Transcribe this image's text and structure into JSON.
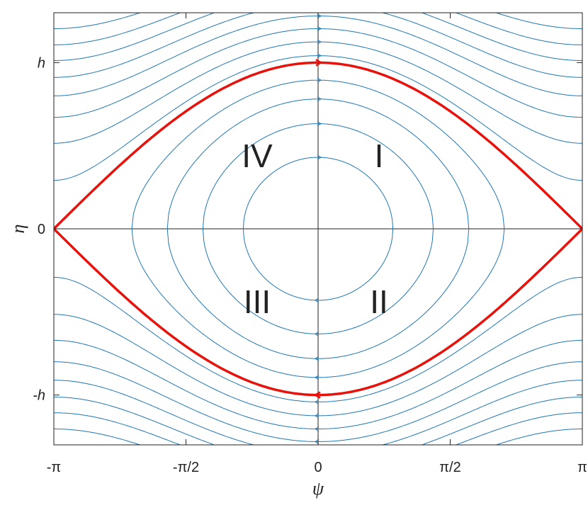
{
  "chart_data": {
    "type": "phase-portrait",
    "x_label": "ψ",
    "y_label": "η",
    "xlim": [
      -3.14159,
      3.14159
    ],
    "ylim": [
      -2.6,
      2.6
    ],
    "xticks": [
      {
        "value": -3.14159,
        "label": "-π"
      },
      {
        "value": -1.5708,
        "label": "-π/2"
      },
      0,
      {
        "value": 1.5708,
        "label": "π/2"
      },
      {
        "value": 3.14159,
        "label": "π"
      }
    ],
    "yticks": [
      {
        "value": -2,
        "label": "-h"
      },
      0,
      {
        "value": 2,
        "label": "h"
      }
    ],
    "levels": [
      -0.63,
      -0.2,
      0.22,
      0.6,
      1.17,
      1.53,
      1.9,
      2.28,
      2.66,
      3.05,
      3.45,
      3.9,
      4.4
    ],
    "color": "#1f77b4",
    "separatrix": {
      "level": 1,
      "color": "#e8120c"
    },
    "annotations": [
      "I",
      "II",
      "III",
      "IV"
    ]
  }
}
